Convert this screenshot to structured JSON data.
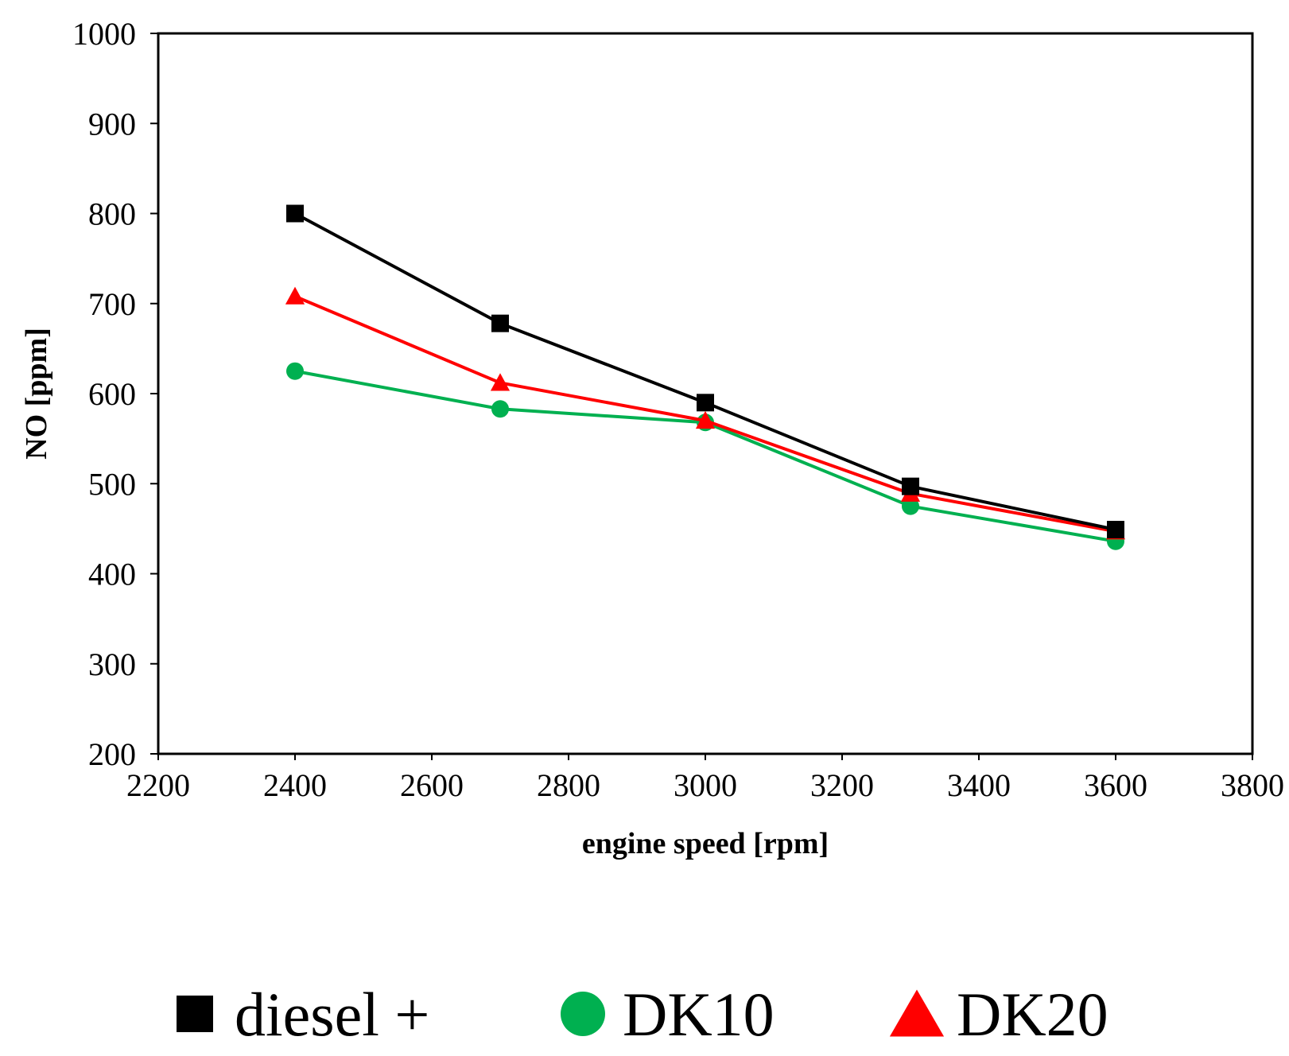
{
  "chart_data": {
    "type": "line",
    "title": "",
    "xlabel": "engine speed [rpm]",
    "ylabel": "NO [ppm]",
    "xlim": [
      2200,
      3800
    ],
    "ylim": [
      200,
      1000
    ],
    "x_ticks": [
      2200,
      2400,
      2600,
      2800,
      3000,
      3200,
      3400,
      3600,
      3800
    ],
    "y_ticks": [
      200,
      300,
      400,
      500,
      600,
      700,
      800,
      900,
      1000
    ],
    "x_tick_labels": [
      "2200",
      "2400",
      "2600",
      "2800",
      "3000",
      "3200",
      "3400",
      "3600",
      "3800"
    ],
    "y_tick_labels": [
      "200",
      "300",
      "400",
      "500",
      "600",
      "700",
      "800",
      "900",
      "1000"
    ],
    "grid": false,
    "legend_position": "bottom",
    "series": [
      {
        "name": "diesel +",
        "marker": "square",
        "color": "#000000",
        "x": [
          2400,
          2700,
          3000,
          3300,
          3600
        ],
        "y": [
          800,
          678,
          590,
          497,
          449
        ]
      },
      {
        "name": "DK10",
        "marker": "circle",
        "color": "#00b050",
        "x": [
          2400,
          2700,
          3000,
          3300,
          3600
        ],
        "y": [
          625,
          583,
          568,
          475,
          436
        ]
      },
      {
        "name": "DK20",
        "marker": "triangle",
        "color": "#ff0000",
        "x": [
          2400,
          2700,
          3000,
          3300,
          3600
        ],
        "y": [
          708,
          612,
          570,
          489,
          447
        ]
      }
    ]
  }
}
